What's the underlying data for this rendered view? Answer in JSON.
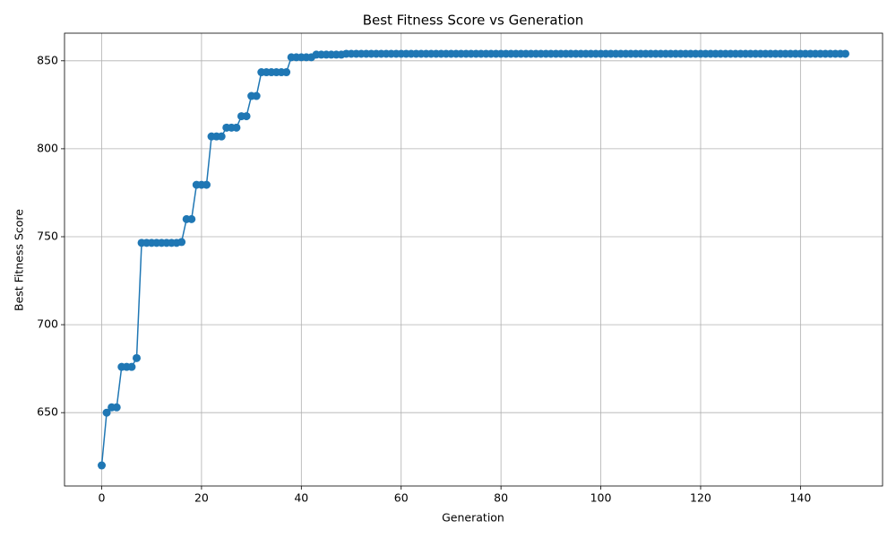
{
  "chart_data": {
    "type": "line",
    "title": "Best Fitness Score vs Generation",
    "x_label": "Generation",
    "y_label": "Best Fitness Score",
    "x": [
      0,
      1,
      2,
      3,
      4,
      5,
      6,
      7,
      8,
      9,
      10,
      11,
      12,
      13,
      14,
      15,
      16,
      17,
      18,
      19,
      20,
      21,
      22,
      23,
      24,
      25,
      26,
      27,
      28,
      29,
      30,
      31,
      32,
      33,
      34,
      35,
      36,
      37,
      38,
      39,
      40,
      41,
      42,
      43,
      44,
      45,
      46,
      47,
      48,
      49,
      50,
      51,
      52,
      53,
      54,
      55,
      56,
      57,
      58,
      59,
      60,
      61,
      62,
      63,
      64,
      65,
      66,
      67,
      68,
      69,
      70,
      71,
      72,
      73,
      74,
      75,
      76,
      77,
      78,
      79,
      80,
      81,
      82,
      83,
      84,
      85,
      86,
      87,
      88,
      89,
      90,
      91,
      92,
      93,
      94,
      95,
      96,
      97,
      98,
      99,
      100,
      101,
      102,
      103,
      104,
      105,
      106,
      107,
      108,
      109,
      110,
      111,
      112,
      113,
      114,
      115,
      116,
      117,
      118,
      119,
      120,
      121,
      122,
      123,
      124,
      125,
      126,
      127,
      128,
      129,
      130,
      131,
      132,
      133,
      134,
      135,
      136,
      137,
      138,
      139,
      140,
      141,
      142,
      143,
      144,
      145,
      146,
      147,
      148,
      149
    ],
    "series": [
      {
        "name": "Best Fitness Score",
        "color": "#1f77b4",
        "values": [
          620,
          650,
          653,
          653,
          676,
          676,
          676,
          681,
          746.5,
          746.5,
          746.5,
          746.5,
          746.5,
          746.5,
          746.5,
          746.5,
          747,
          760,
          760,
          779.5,
          779.5,
          779.5,
          807,
          807,
          807,
          812,
          812,
          812,
          818.5,
          818.5,
          830,
          830,
          843.5,
          843.5,
          843.5,
          843.5,
          843.5,
          843.5,
          852,
          852,
          852,
          852,
          852,
          853.5,
          853.5,
          853.5,
          853.5,
          853.5,
          853.5,
          854,
          854,
          854,
          854,
          854,
          854,
          854,
          854,
          854,
          854,
          854,
          854,
          854,
          854,
          854,
          854,
          854,
          854,
          854,
          854,
          854,
          854,
          854,
          854,
          854,
          854,
          854,
          854,
          854,
          854,
          854,
          854,
          854,
          854,
          854,
          854,
          854,
          854,
          854,
          854,
          854,
          854,
          854,
          854,
          854,
          854,
          854,
          854,
          854,
          854,
          854,
          854,
          854,
          854,
          854,
          854,
          854,
          854,
          854,
          854,
          854,
          854,
          854,
          854,
          854,
          854,
          854,
          854,
          854,
          854,
          854,
          854,
          854,
          854,
          854,
          854,
          854,
          854,
          854,
          854,
          854,
          854,
          854,
          854,
          854,
          854,
          854,
          854,
          854,
          854,
          854,
          854,
          854,
          854,
          854,
          854,
          854,
          854,
          854,
          854,
          854
        ]
      }
    ],
    "xlim": [
      -7.45,
      156.45
    ],
    "ylim": [
      608.3,
      865.7
    ],
    "xticks": [
      0,
      20,
      40,
      60,
      80,
      100,
      120,
      140
    ],
    "yticks": [
      650,
      700,
      750,
      800,
      850
    ],
    "grid": true
  }
}
